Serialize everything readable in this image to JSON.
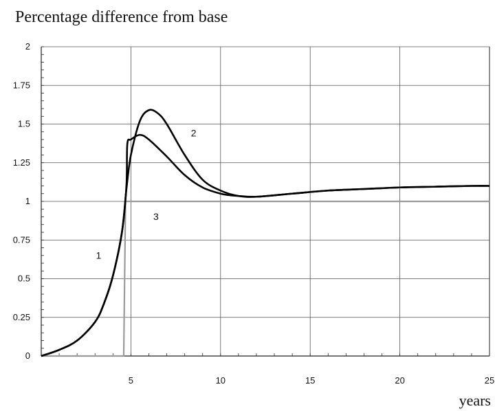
{
  "chart_data": {
    "type": "line",
    "title": "Percentage difference from base",
    "xlabel": "years",
    "ylabel": "",
    "xlim": [
      0,
      25
    ],
    "ylim": [
      0,
      2
    ],
    "x_ticks": [
      5,
      10,
      15,
      20,
      25
    ],
    "y_ticks": [
      0,
      0.25,
      0.5,
      0.75,
      1,
      1.25,
      1.5,
      1.75,
      2
    ],
    "y_tick_labels": [
      "0",
      "0.25",
      "0.5",
      "0.75",
      "1",
      "1.25",
      "1.5",
      "1.75",
      "2"
    ],
    "grid": true,
    "legend": "none",
    "series": [
      {
        "name": "1",
        "color": "#000000",
        "x": [
          0,
          1,
          2,
          3,
          3.5,
          4,
          4.5,
          4.75,
          4.8,
          5,
          5.5,
          6,
          7,
          8,
          9,
          10,
          10.5,
          11,
          12,
          14,
          16,
          18,
          20,
          22,
          24,
          25
        ],
        "y": [
          0,
          0.04,
          0.1,
          0.22,
          0.34,
          0.52,
          0.8,
          1.1,
          1.37,
          1.4,
          1.43,
          1.4,
          1.29,
          1.17,
          1.09,
          1.05,
          1.04,
          1.035,
          1.03,
          1.05,
          1.07,
          1.08,
          1.09,
          1.095,
          1.1,
          1.1
        ]
      },
      {
        "name": "2",
        "color": "#000000",
        "x": [
          0,
          1,
          2,
          3,
          3.5,
          4,
          4.5,
          4.75,
          5,
          5.5,
          6,
          6.5,
          7,
          8,
          9,
          10,
          11,
          12,
          14,
          16,
          18,
          20,
          22,
          24,
          25
        ],
        "y": [
          0,
          0.04,
          0.1,
          0.22,
          0.34,
          0.52,
          0.8,
          1.08,
          1.3,
          1.52,
          1.59,
          1.57,
          1.5,
          1.3,
          1.14,
          1.07,
          1.035,
          1.03,
          1.05,
          1.07,
          1.08,
          1.09,
          1.095,
          1.1,
          1.1
        ]
      },
      {
        "name": "3",
        "color": "#9a9a9a",
        "x": [
          0,
          4.6,
          4.7,
          4.8,
          5,
          10,
          15,
          20,
          25
        ],
        "y": [
          0,
          0,
          1.0,
          1.0,
          1.0,
          1.0,
          1.0,
          1.0,
          1.0
        ]
      }
    ],
    "curve_labels": [
      {
        "text": "1",
        "x": 3.2,
        "y": 0.63
      },
      {
        "text": "2",
        "x": 8.5,
        "y": 1.42
      },
      {
        "text": "3",
        "x": 6.4,
        "y": 0.88
      }
    ]
  }
}
